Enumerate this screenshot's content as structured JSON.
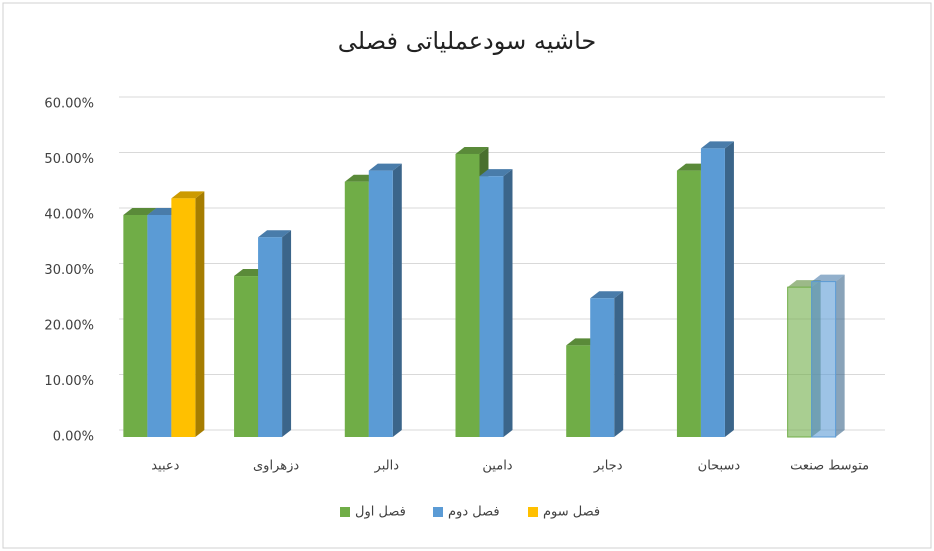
{
  "chart_data": {
    "type": "bar3d",
    "title": "حاشیه سودعملیاتی فصلی",
    "categories": [
      "دعبید",
      "دزهراوی",
      "دالبر",
      "دامین",
      "دجابر",
      "دسبحان",
      "متوسط صنعت"
    ],
    "series": [
      {
        "name": "فصل اول",
        "color": "#70ad47",
        "values": [
          40,
          29,
          46,
          51,
          16.5,
          48,
          27
        ]
      },
      {
        "name": "فصل دوم",
        "color": "#5b9bd5",
        "values": [
          40,
          36,
          48,
          47,
          25,
          52,
          28
        ]
      },
      {
        "name": "فصل سوم",
        "color": "#ffc000",
        "values": [
          43,
          null,
          null,
          null,
          null,
          null,
          null
        ]
      }
    ],
    "ylim": [
      0,
      60
    ],
    "yticks": [
      {
        "value": 0,
        "label": "0.00%"
      },
      {
        "value": 10,
        "label": "10.00%"
      },
      {
        "value": 20,
        "label": "20.00%"
      },
      {
        "value": 30,
        "label": "30.00%"
      },
      {
        "value": 40,
        "label": "40.00%"
      },
      {
        "value": 50,
        "label": "50.00%"
      },
      {
        "value": 60,
        "label": "60.00%"
      }
    ],
    "grid": true,
    "legend": "bottom"
  }
}
